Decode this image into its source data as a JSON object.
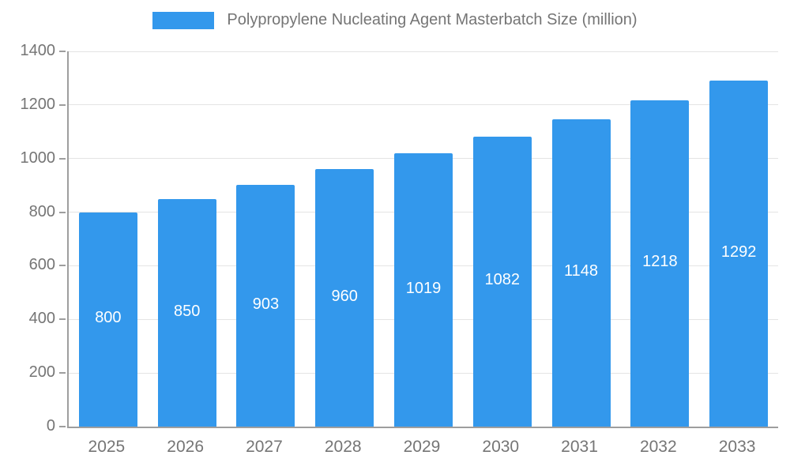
{
  "chart_data": {
    "type": "bar",
    "title": "Polypropylene Nucleating Agent Masterbatch Size (million)",
    "categories": [
      "2025",
      "2026",
      "2027",
      "2028",
      "2029",
      "2030",
      "2031",
      "2032",
      "2033"
    ],
    "values": [
      800,
      850,
      903,
      960,
      1019,
      1082,
      1148,
      1218,
      1292
    ],
    "xlabel": "",
    "ylabel": "",
    "ylim": [
      0,
      1400
    ],
    "yticks": [
      0,
      200,
      400,
      600,
      800,
      1000,
      1200,
      1400
    ],
    "grid": true,
    "legend_position": "top-center",
    "bar_color": "#3398EC",
    "value_label_color": "#ffffff",
    "axis_text_color": "#757575",
    "grid_color": "#e4e4e4",
    "axis_line_color": "#9e9e9e",
    "background_color": "#ffffff"
  }
}
